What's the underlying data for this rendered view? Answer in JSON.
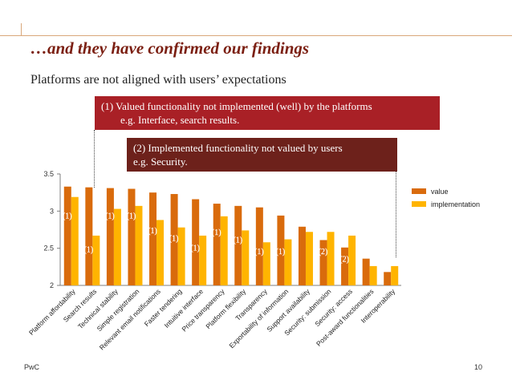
{
  "slide": {
    "title": "…and they have confirmed our findings",
    "subtitle": "Platforms are not aligned with users’ expectations",
    "footer_left": "PwC",
    "page_number": "10"
  },
  "callouts": [
    {
      "line1": "(1)  Valued functionality not implemented (well) by the platforms",
      "line2": "e.g. Interface, search results."
    },
    {
      "line1": "(2) Implemented functionality not valued by users",
      "line2": "e.g. Security."
    }
  ],
  "colors": {
    "value": "#d96b0c",
    "implementation": "#ffb400",
    "title": "#7b1f12",
    "callout1": "#a92026",
    "callout2": "#6d211b"
  },
  "chart_data": {
    "type": "bar",
    "title": "",
    "xlabel": "",
    "ylabel": "",
    "ylim": [
      2,
      3.5
    ],
    "yticks": [
      "2",
      "2.5",
      "3",
      "3.5"
    ],
    "legend_position": "right",
    "categories": [
      "Platform affordability",
      "Search results",
      "Technical stability",
      "Simple registration",
      "Relevant email notifications",
      "Faster tendering",
      "Intuitive interface",
      "Price transparency",
      "Platform flexibility",
      "Transparency",
      "Exportability of information",
      "Support availability",
      "Security: submission",
      "Security: access",
      "Post-award functionalities",
      "Interoperability"
    ],
    "series": [
      {
        "name": "value",
        "values": [
          3.33,
          3.32,
          3.31,
          3.3,
          3.25,
          3.23,
          3.16,
          3.1,
          3.07,
          3.05,
          2.94,
          2.79,
          2.61,
          2.51,
          2.36,
          2.18
        ]
      },
      {
        "name": "implementation",
        "values": [
          3.19,
          2.67,
          3.03,
          3.07,
          2.88,
          2.78,
          2.67,
          2.93,
          2.74,
          2.58,
          2.62,
          2.72,
          2.72,
          2.67,
          2.26,
          2.26
        ]
      }
    ],
    "annotations": [
      {
        "category_index": 0,
        "label": "(1)",
        "level": 2.9
      },
      {
        "category_index": 1,
        "label": "(1)",
        "level": 2.45
      },
      {
        "category_index": 2,
        "label": "(1)",
        "level": 2.9
      },
      {
        "category_index": 3,
        "label": "(1)",
        "level": 2.9
      },
      {
        "category_index": 4,
        "label": "(1)",
        "level": 2.7
      },
      {
        "category_index": 5,
        "label": "(1)",
        "level": 2.6
      },
      {
        "category_index": 6,
        "label": "(1)",
        "level": 2.47
      },
      {
        "category_index": 7,
        "label": "(1)",
        "level": 2.68
      },
      {
        "category_index": 8,
        "label": "(1)",
        "level": 2.58
      },
      {
        "category_index": 9,
        "label": "(1)",
        "level": 2.42
      },
      {
        "category_index": 10,
        "label": "(1)",
        "level": 2.42
      },
      {
        "category_index": 12,
        "label": "(2)",
        "level": 2.42
      },
      {
        "category_index": 13,
        "label": "(2)",
        "level": 2.32
      }
    ]
  }
}
